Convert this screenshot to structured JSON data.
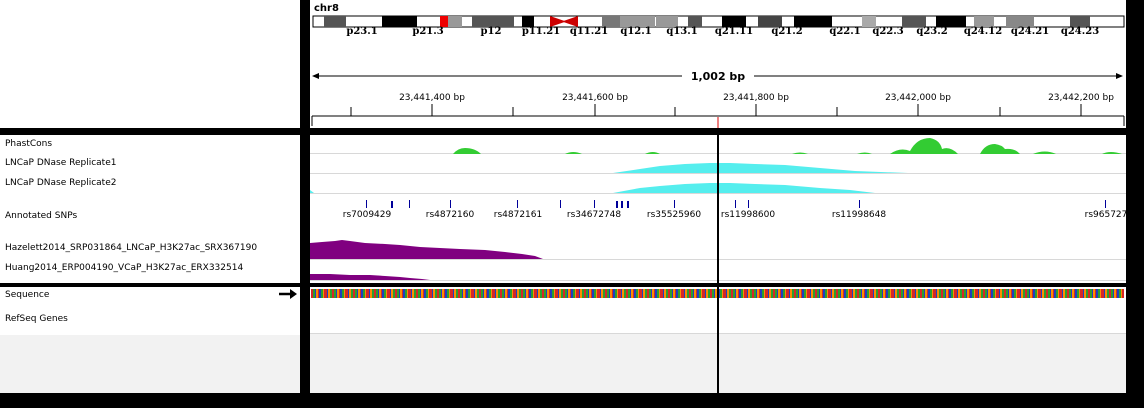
{
  "ideogram": {
    "chrom": "chr8",
    "bands": [
      "p23.1",
      "p21.3",
      "p12",
      "p11.21",
      "q11.21",
      "q12.1",
      "q13.1",
      "q21.11",
      "q21.2",
      "q22.1",
      "q22.3",
      "q23.2",
      "q24.12",
      "q24.21",
      "q24.23"
    ]
  },
  "ruler": {
    "span_label": "1,002 bp",
    "ticks": [
      "23,441,400 bp",
      "23,441,600 bp",
      "23,441,800 bp",
      "23,442,000 bp",
      "23,442,200 bp"
    ]
  },
  "tracks": {
    "phastcons": "PhastCons",
    "dnase1": "LNCaP DNase Replicate1",
    "dnase2": "LNCaP DNase Replicate2",
    "snps": "Annotated SNPs",
    "hazelett": "Hazelett2014_SRP031864_LNCaP_H3K27ac_SRX367190",
    "huang": "Huang2014_ERP004190_VCaP_H3K27ac_ERX332514",
    "sequence": "Sequence",
    "refseq": "RefSeq Genes"
  },
  "snp_labels": [
    "rs7009429",
    "rs4872160",
    "rs4872161",
    "rs34672748",
    "rs35525960",
    "rs11998600",
    "rs11998648",
    "rs965727"
  ],
  "colors": {
    "phastcons": "#33cc33",
    "dnase": "#55eeee",
    "h3k27ac": "#800080",
    "snp": "#000099",
    "cursor": "#000000"
  }
}
